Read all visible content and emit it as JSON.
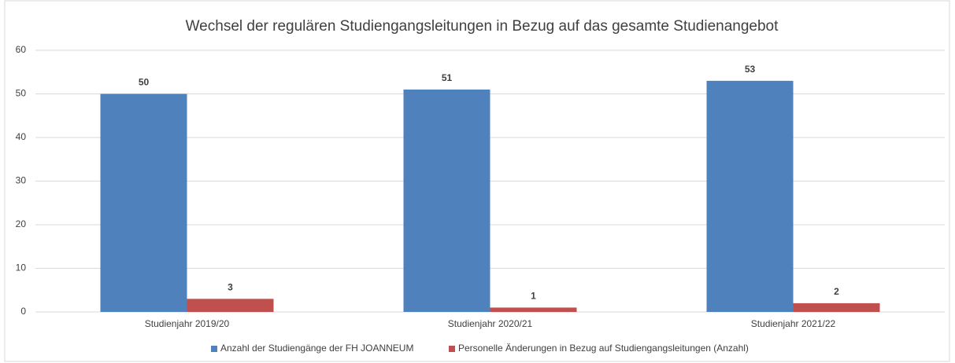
{
  "chart_data": {
    "type": "bar",
    "title": "Wechsel der regulären Studiengangsleitungen in Bezug auf das gesamte Studienangebot",
    "categories": [
      "Studienjahr 2019/20",
      "Studienjahr 2020/21",
      "Studienjahr 2021/22"
    ],
    "series": [
      {
        "name": "Anzahl der Studiengänge der FH JOANNEUM",
        "color": "#4f81bd",
        "values": [
          50,
          51,
          53
        ]
      },
      {
        "name": "Personelle Änderungen in Bezug auf Studiengangsleitungen (Anzahl)",
        "color": "#c0504d",
        "values": [
          3,
          1,
          2
        ]
      }
    ],
    "ylim": [
      0,
      60
    ],
    "yticks": [
      0,
      10,
      20,
      30,
      40,
      50,
      60
    ],
    "grid": true,
    "legend": "bottom"
  }
}
